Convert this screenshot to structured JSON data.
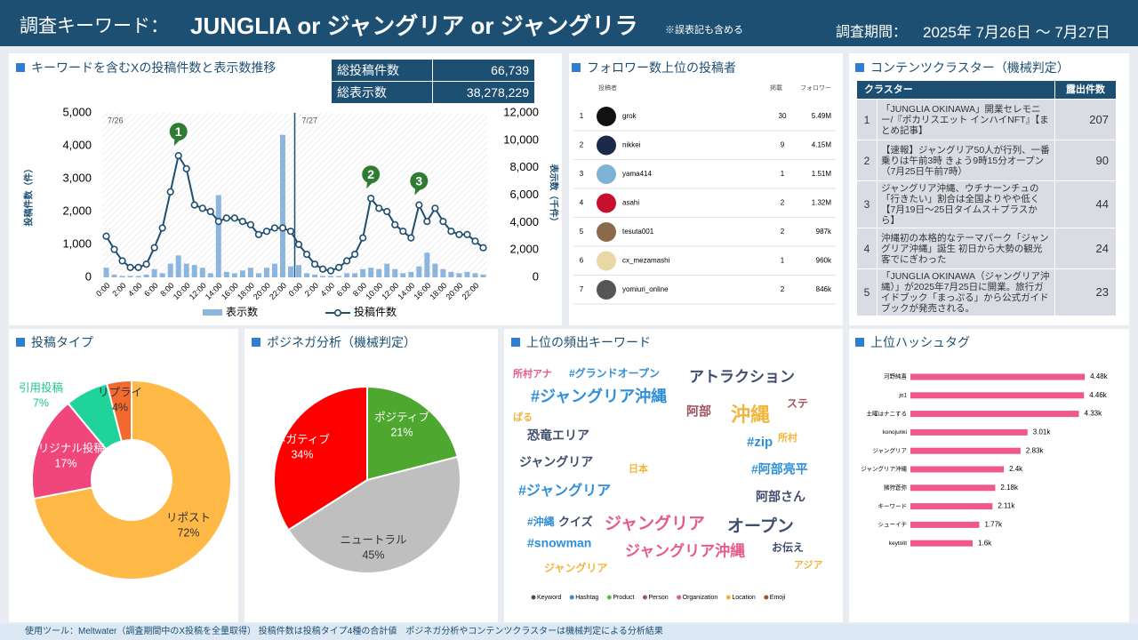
{
  "header": {
    "label": "調査キーワード：",
    "keywords": "JUNGLIA or ジャングリア or ジャングリラ",
    "note": "※誤表記も含める",
    "period_label": "調査期間：",
    "period": "2025年 7月26日 ～ 7月27日"
  },
  "stats": {
    "rows": [
      [
        "総投稿件数",
        "66,739"
      ],
      [
        "総表示数",
        "38,278,229"
      ]
    ]
  },
  "chart_data": [
    {
      "type": "combo",
      "title": "キーワードを含むXの投稿件数と表示数推移",
      "categories": [
        "0:00",
        null,
        "2:00",
        null,
        "4:00",
        null,
        "6:00",
        null,
        "8:00",
        null,
        "10:00",
        null,
        "12:00",
        null,
        "14:00",
        null,
        "16:00",
        null,
        "18:00",
        null,
        "20:00",
        null,
        "22:00",
        null,
        "0:00",
        null,
        "2:00",
        null,
        "4:00",
        null,
        "6:00",
        null,
        "8:00",
        null,
        "10:00",
        null,
        "12:00",
        null,
        "14:00",
        null,
        "16:00",
        null,
        "18:00",
        null,
        "20:00",
        null,
        "22:00",
        null
      ],
      "series": [
        {
          "name": "表示数",
          "type": "bar",
          "axis": "y2",
          "color": "#8db6df",
          "values": [
            700,
            200,
            100,
            100,
            100,
            200,
            600,
            300,
            1000,
            1600,
            1000,
            900,
            700,
            300,
            6000,
            400,
            300,
            500,
            700,
            300,
            700,
            1000,
            10400,
            800,
            900,
            300,
            200,
            100,
            100,
            100,
            300,
            300,
            600,
            700,
            600,
            1000,
            600,
            300,
            400,
            800,
            1800,
            1000,
            600,
            400,
            300,
            400,
            300,
            200
          ]
        },
        {
          "name": "投稿件数",
          "type": "line",
          "color": "#1f4e6e",
          "values": [
            1250,
            850,
            500,
            300,
            300,
            400,
            900,
            1500,
            2600,
            3700,
            3300,
            2200,
            2100,
            2000,
            1700,
            1800,
            1800,
            1700,
            1600,
            1300,
            1400,
            1500,
            1500,
            1400,
            1000,
            700,
            400,
            250,
            200,
            300,
            500,
            700,
            1200,
            2400,
            2100,
            2000,
            1600,
            1400,
            1200,
            2200,
            1700,
            2100,
            1700,
            1400,
            1300,
            1300,
            1100,
            900
          ]
        }
      ],
      "ylabel": "投稿件数（件）",
      "y2label": "表示数（千件）",
      "ylim": [
        0,
        5000
      ],
      "yticks": [
        0,
        {
          "value": 1000,
          "label": "1,000"
        },
        {
          "value": 2000,
          "label": "2,000"
        },
        {
          "value": 3000,
          "label": "3,000"
        },
        {
          "value": 4000,
          "label": "4,000"
        },
        {
          "value": 5000,
          "label": "5,000"
        }
      ],
      "y2lim": [
        0,
        12000
      ],
      "y2ticks": [
        0,
        {
          "value": 2000,
          "label": "2,000"
        },
        {
          "value": 4000,
          "label": "4,000"
        },
        {
          "value": 6000,
          "label": "6,000"
        },
        {
          "value": 8000,
          "label": "8,000"
        },
        {
          "value": 10000,
          "label": "10,000"
        },
        {
          "value": 12000,
          "label": "12,000"
        }
      ],
      "annotations": [
        "7/26",
        "7/27"
      ],
      "callouts": [
        "1",
        "2",
        "3"
      ],
      "legend": "bottom"
    },
    {
      "type": "donut",
      "title": "投稿タイプ",
      "categories": [
        "リポスト",
        "オリジナル投稿",
        "引用投稿",
        "リプライ"
      ],
      "values": [
        72,
        17,
        7,
        4
      ],
      "value_labels": [
        "72%",
        "17%",
        "7%",
        "4%"
      ],
      "colors": [
        "#ffb947",
        "#f0467b",
        "#1fd39a",
        "#f4692e"
      ]
    },
    {
      "type": "pie",
      "title": "ポジネガ分析（機械判定）",
      "categories": [
        "ポジティブ",
        "ニュートラル",
        "ネガティブ"
      ],
      "values": [
        21,
        45,
        34
      ],
      "value_labels": [
        "21%",
        "45%",
        "34%"
      ],
      "colors": [
        "#4ea72e",
        "#bfbfbf",
        "#ff0000"
      ]
    },
    {
      "type": "hbar",
      "title": "上位ハッシュタグ",
      "categories": [
        "河野純喜",
        "jo1",
        "土曜はナニする",
        "konojunki",
        "ジャングリア",
        "ジャングリア沖縄",
        "猪狩蒼弥",
        "キーワード",
        "シューイチ",
        "keytolit"
      ],
      "values": [
        4480,
        4460,
        4330,
        3010,
        2830,
        2400,
        2180,
        2110,
        1770,
        1600
      ],
      "value_labels": [
        "4.48k",
        "4.46k",
        "4.33k",
        "3.01k",
        "2.83k",
        "2.4k",
        "2.18k",
        "2.11k",
        "1.77k",
        "1.6k"
      ],
      "color": "#f0578b",
      "xlim": [
        0,
        4500
      ]
    }
  ],
  "followers": {
    "title": "フォロワー数上位の投稿者",
    "columns": [
      "投稿者",
      "掲載",
      "フォロワー"
    ],
    "rows": [
      [
        1,
        "grok",
        30,
        "5.49M"
      ],
      [
        2,
        "nikkei",
        9,
        "4.15M"
      ],
      [
        3,
        "yama414",
        1,
        "1.51M"
      ],
      [
        4,
        "asahi",
        2,
        "1.32M"
      ],
      [
        5,
        "tesuta001",
        2,
        "987k"
      ],
      [
        6,
        "cx_mezamashi",
        1,
        "960k"
      ],
      [
        7,
        "yomiuri_online",
        2,
        "846k"
      ]
    ]
  },
  "clusters": {
    "title": "コンテンツクラスター（機械判定）",
    "columns": [
      "クラスター",
      "露出件数"
    ],
    "rows": [
      [
        1,
        "「JUNGLIA OKINAWA」開業セレモニー/『ポカリスエット インハイNFT』【まとめ記事】",
        207
      ],
      [
        2,
        "【速報】ジャングリア50人が行列、一番乗りは午前3時 きょう9時15分オープン（7月25日午前7時）",
        90
      ],
      [
        3,
        "ジャングリア沖縄、ウチナーンチュの「行きたい」割合は全国よりやや低く【7月19日～25日タイムス＋プラスから】",
        44
      ],
      [
        4,
        "沖縄初の本格的なテーマパーク「ジャングリア沖縄」誕生 初日から大勢の観光客でにぎわった",
        24
      ],
      [
        5,
        "「JUNGLIA OKINAWA（ジャングリア沖縄）」が2025年7月25日に開業。旅行ガイドブック「まっぷる」から公式ガイドブックが発売される。",
        23
      ]
    ]
  },
  "keywords": {
    "title": "上位の頻出キーワード",
    "words": [
      {
        "text": "所村アナ",
        "type": "Organization"
      },
      {
        "text": "#グランドオープン",
        "type": "Hashtag"
      },
      {
        "text": "アトラクション",
        "type": "Keyword"
      },
      {
        "text": "#ジャングリア沖縄",
        "type": "Hashtag"
      },
      {
        "text": "ステ",
        "type": "Person"
      },
      {
        "text": "阿部",
        "type": "Person"
      },
      {
        "text": "沖縄",
        "type": "Location"
      },
      {
        "text": "ぱる",
        "type": "Location"
      },
      {
        "text": "恐竜エリア",
        "type": "Keyword"
      },
      {
        "text": "所村",
        "type": "Location"
      },
      {
        "text": "#zip",
        "type": "Hashtag"
      },
      {
        "text": "ジャングリア",
        "type": "Keyword"
      },
      {
        "text": "日本",
        "type": "Location"
      },
      {
        "text": "#阿部亮平",
        "type": "Hashtag"
      },
      {
        "text": "#ジャングリア",
        "type": "Hashtag"
      },
      {
        "text": "阿部さん",
        "type": "Keyword"
      },
      {
        "text": "#沖縄",
        "type": "Hashtag"
      },
      {
        "text": "クイズ",
        "type": "Keyword"
      },
      {
        "text": "ジャングリア",
        "type": "Organization"
      },
      {
        "text": "オープン",
        "type": "Keyword"
      },
      {
        "text": "#snowman",
        "type": "Hashtag"
      },
      {
        "text": "お伝え",
        "type": "Keyword"
      },
      {
        "text": "ジャングリア沖縄",
        "type": "Organization"
      },
      {
        "text": "アジア",
        "type": "Location"
      },
      {
        "text": "ジャングリア",
        "type": "Location"
      }
    ],
    "legend": [
      {
        "name": "Keyword",
        "color": "#404e6e"
      },
      {
        "name": "Hashtag",
        "color": "#2f8fd9"
      },
      {
        "name": "Product",
        "color": "#5cb85c"
      },
      {
        "name": "Person",
        "color": "#a0525e"
      },
      {
        "name": "Organization",
        "color": "#e85a87"
      },
      {
        "name": "Location",
        "color": "#f2b53c"
      },
      {
        "name": "Emoji",
        "color": "#8c5a3a"
      }
    ]
  },
  "footer": "使用ツール：Meltwater（調査期間中のX投稿を全量取得） 投稿件数は投稿タイプ4種の合計値　ポジネガ分析やコンテンツクラスターは機械判定による分析結果"
}
